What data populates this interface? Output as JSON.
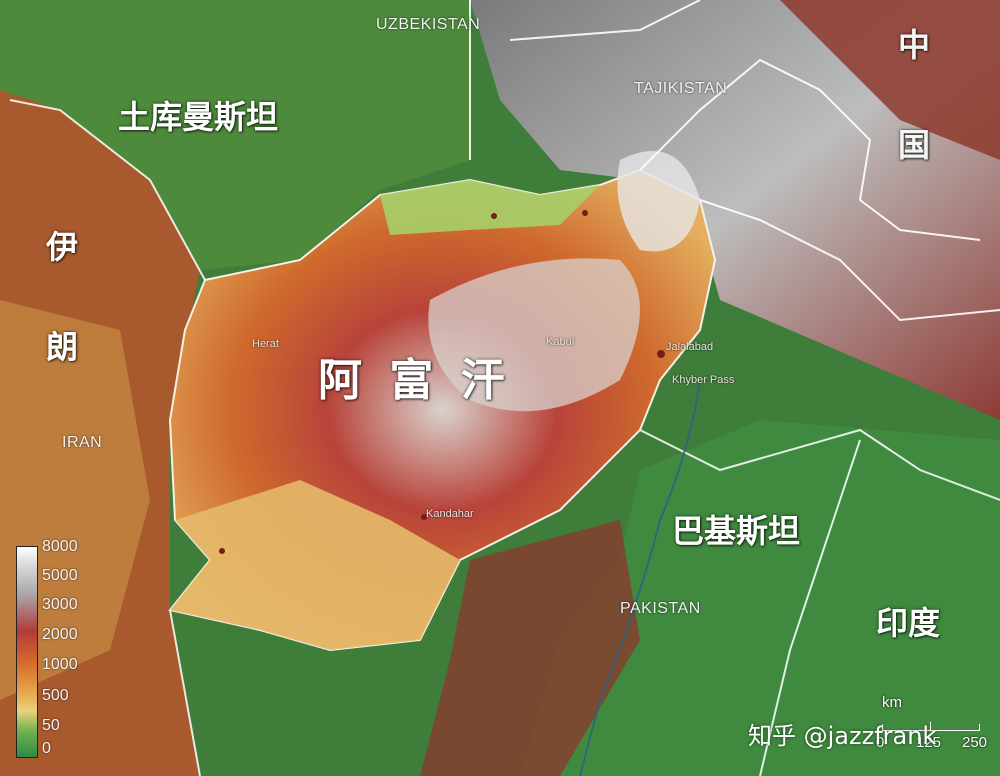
{
  "countries": {
    "afghanistan_cn": "阿 富 汗",
    "turkmenistan_cn": "土库曼斯坦",
    "iran_cn_1": "伊",
    "iran_cn_2": "朗",
    "iran_en": "IRAN",
    "uzbekistan_en": "UZBEKISTAN",
    "tajikistan_en": "TAJIKISTAN",
    "china_cn_1": "中",
    "china_cn_2": "国",
    "pakistan_cn": "巴基斯坦",
    "pakistan_en": "PAKISTAN",
    "india_cn": "印度"
  },
  "cities": {
    "herat": "Herat",
    "kabul": "Kabul",
    "jalalabad": "Jalalabad",
    "kandahar": "Kandahar",
    "khyber": "Khyber Pass"
  },
  "legend": {
    "ticks": [
      "8000",
      "5000",
      "3000",
      "2000",
      "1000",
      "500",
      "50",
      "0"
    ]
  },
  "scale": {
    "unit": "km",
    "ticks": [
      "0",
      "125",
      "250"
    ]
  },
  "watermark": "知乎 @jazzfrank",
  "colors": {
    "lowland": "#2e8b45",
    "plain": "#e9d27a",
    "hill": "#d76b2a",
    "mountain": "#b23a3a",
    "peak": "#ffffff"
  }
}
